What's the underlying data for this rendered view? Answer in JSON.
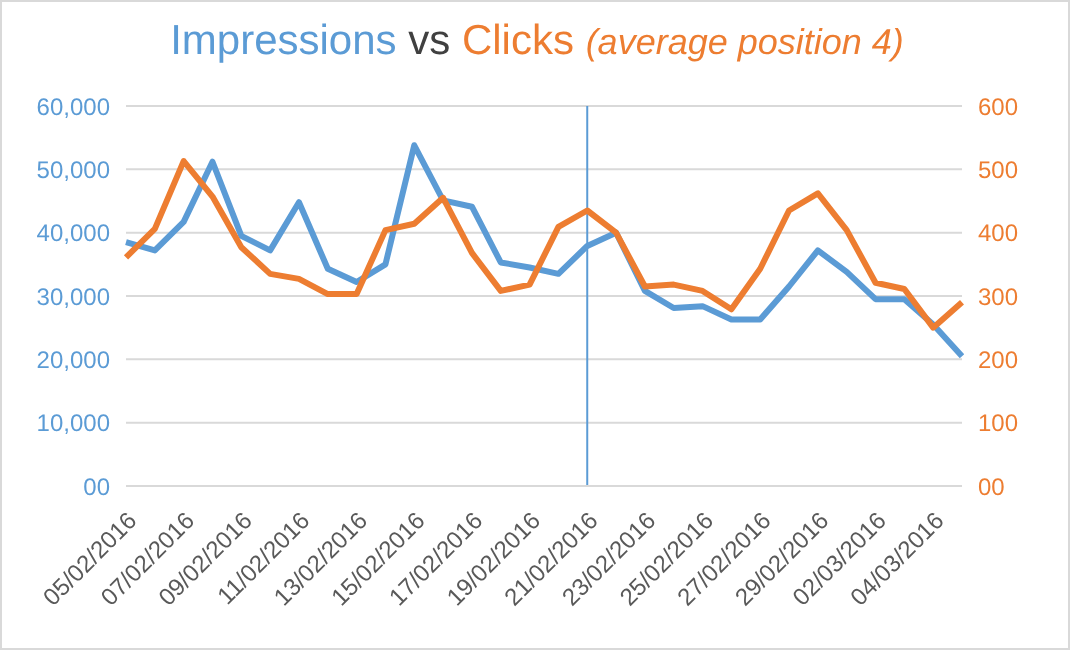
{
  "chart_data": {
    "type": "line",
    "title": "vs",
    "subtitle": "(average position 4)",
    "categories": [
      "05/02/2016",
      null,
      "07/02/2016",
      null,
      "09/02/2016",
      null,
      "11/02/2016",
      null,
      "13/02/2016",
      null,
      "15/02/2016",
      null,
      "17/02/2016",
      null,
      "19/02/2016",
      null,
      "21/02/2016",
      null,
      "23/02/2016",
      null,
      "25/02/2016",
      null,
      "27/02/2016",
      null,
      "29/02/2016",
      null,
      "02/03/2016",
      null,
      "04/03/2016",
      null
    ],
    "series": [
      {
        "name": "Impressions",
        "color": "#5b9bd5",
        "values": [
          38500,
          37200,
          41700,
          51200,
          39500,
          37200,
          44800,
          34300,
          32200,
          35000,
          53800,
          45100,
          44100,
          35300,
          34500,
          33500,
          37900,
          40000,
          30800,
          28100,
          28400,
          26300,
          26300,
          31500,
          37200,
          33800,
          29500,
          29500,
          25500,
          20500
        ]
      },
      {
        "name": "Clicks",
        "color": "#ed7d31",
        "axis": "y2",
        "values": [
          361,
          406,
          513,
          457,
          377,
          335,
          327,
          303,
          303,
          404,
          414,
          455,
          368,
          308,
          318,
          409,
          435,
          400,
          315,
          318,
          308,
          279,
          343,
          435,
          462,
          404,
          321,
          311,
          250,
          290
        ]
      }
    ],
    "ylim": [
      0,
      60000
    ],
    "yticks": [
      {
        "value": 0,
        "label": "00"
      },
      {
        "value": 10000,
        "label": "10,000"
      },
      {
        "value": 20000,
        "label": "20,000"
      },
      {
        "value": 30000,
        "label": "30,000"
      },
      {
        "value": 40000,
        "label": "40,000"
      },
      {
        "value": 50000,
        "label": "50,000"
      },
      {
        "value": 60000,
        "label": "60,000"
      }
    ],
    "y2lim": [
      0,
      600
    ],
    "y2ticks": [
      {
        "value": 0,
        "label": "00"
      },
      100,
      200,
      300,
      400,
      500,
      600
    ],
    "ref_lines": [
      {
        "axis": "x",
        "value": "21/02/2016",
        "color": "#5b9bd5"
      }
    ],
    "grid": "y",
    "legend": "top",
    "marker": "none",
    "line_style": "solid"
  }
}
